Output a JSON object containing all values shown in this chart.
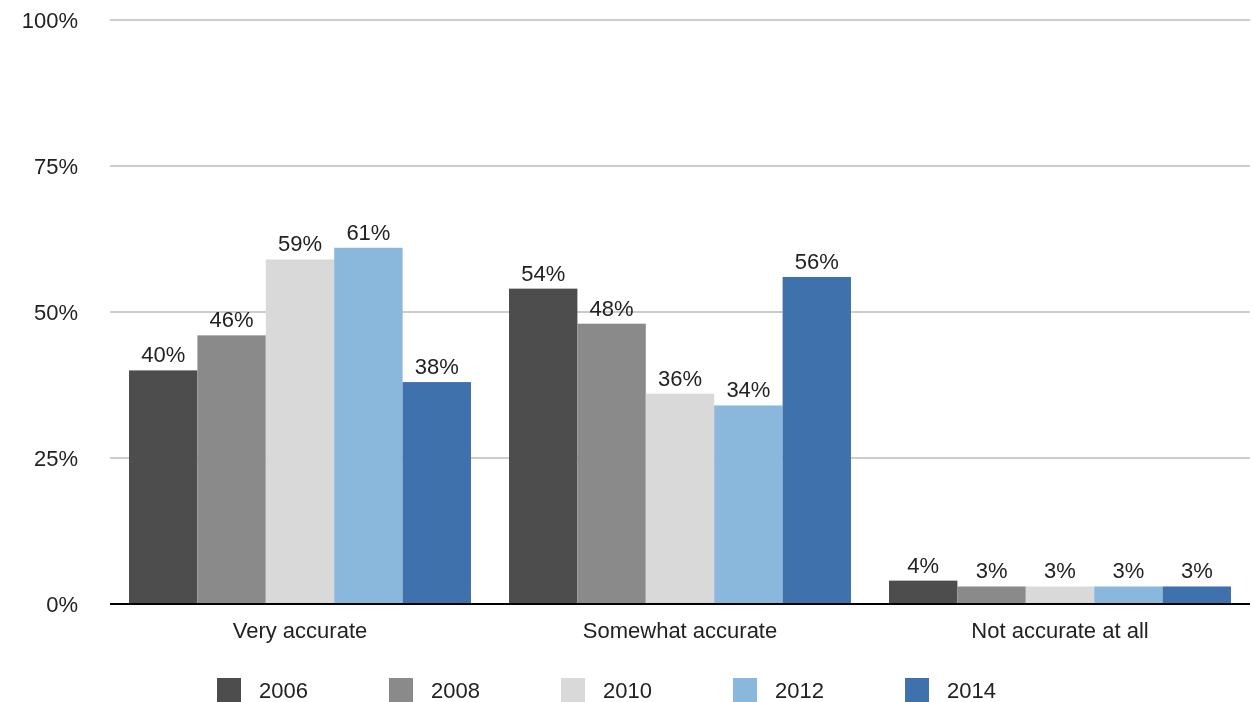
{
  "chart_data": {
    "type": "bar",
    "categories": [
      "Very accurate",
      "Somewhat accurate",
      "Not accurate at all"
    ],
    "series": [
      {
        "name": "2006",
        "color": "#4d4d4d",
        "values": [
          40,
          54,
          4
        ],
        "value_labels": [
          "40%",
          "54%",
          "4%"
        ]
      },
      {
        "name": "2008",
        "color": "#8a8a8a",
        "values": [
          46,
          48,
          3
        ],
        "value_labels": [
          "46%",
          "48%",
          "3%"
        ]
      },
      {
        "name": "2010",
        "color": "#d9d9d9",
        "values": [
          59,
          36,
          3
        ],
        "value_labels": [
          "59%",
          "36%",
          "3%"
        ]
      },
      {
        "name": "2012",
        "color": "#8ab8dc",
        "values": [
          61,
          34,
          3
        ],
        "value_labels": [
          "61%",
          "34%",
          "3%"
        ]
      },
      {
        "name": "2014",
        "color": "#3f72ad",
        "values": [
          38,
          56,
          3
        ],
        "value_labels": [
          "38%",
          "56%",
          "3%"
        ]
      }
    ],
    "ylim": [
      0,
      100
    ],
    "yticks": [
      {
        "value": 0,
        "label": "0%"
      },
      {
        "value": 25,
        "label": "25%"
      },
      {
        "value": 50,
        "label": "50%"
      },
      {
        "value": 75,
        "label": "75%"
      },
      {
        "value": 100,
        "label": "100%"
      }
    ],
    "grid": "y",
    "legend": "bottom"
  }
}
